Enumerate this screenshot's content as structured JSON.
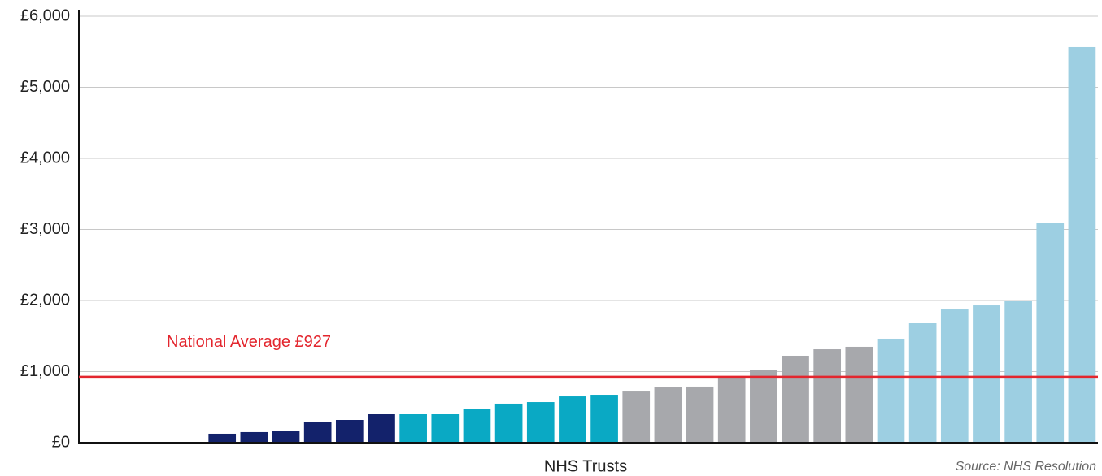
{
  "chart_data": {
    "type": "bar",
    "categories": [
      null,
      null,
      null,
      null,
      null,
      null,
      null,
      null,
      null,
      null,
      null,
      null,
      null,
      null,
      null,
      null,
      null,
      null,
      null,
      null,
      null,
      null,
      null,
      null,
      null,
      null,
      null,
      null,
      null,
      null,
      null,
      null
    ],
    "values": [
      0,
      0,
      0,
      0,
      126,
      149,
      160,
      286,
      320,
      400,
      400,
      400,
      469,
      549,
      571,
      651,
      674,
      731,
      777,
      789,
      937,
      1017,
      1223,
      1314,
      1349,
      1463,
      1680,
      1874,
      1931,
      1989,
      3086,
      5566
    ],
    "colors": [
      "#13226b",
      "#13226b",
      "#13226b",
      "#13226b",
      "#13226b",
      "#13226b",
      "#13226b",
      "#13226b",
      "#13226b",
      "#13226b",
      "#0aa9c4",
      "#0aa9c4",
      "#0aa9c4",
      "#0aa9c4",
      "#0aa9c4",
      "#0aa9c4",
      "#0aa9c4",
      "#a7a8ac",
      "#a7a8ac",
      "#a7a8ac",
      "#a7a8ac",
      "#a7a8ac",
      "#a7a8ac",
      "#a7a8ac",
      "#a7a8ac",
      "#9dcfe2",
      "#9dcfe2",
      "#9dcfe2",
      "#9dcfe2",
      "#9dcfe2",
      "#9dcfe2",
      "#9dcfe2"
    ],
    "ylim": [
      0,
      6000
    ],
    "yticks": [
      {
        "value": 0,
        "label": "£0"
      },
      {
        "value": 1000,
        "label": "£1,000"
      },
      {
        "value": 2000,
        "label": "£2,000"
      },
      {
        "value": 3000,
        "label": "£3,000"
      },
      {
        "value": 4000,
        "label": "£4,000"
      },
      {
        "value": 5000,
        "label": "£5,000"
      },
      {
        "value": 6000,
        "label": "£6,000"
      }
    ],
    "grid": true,
    "x_label": "NHS Trusts",
    "source": "Source: NHS Resolution",
    "reference_line": {
      "value": 927,
      "label": "National Average £927",
      "color": "#e3262e"
    }
  }
}
